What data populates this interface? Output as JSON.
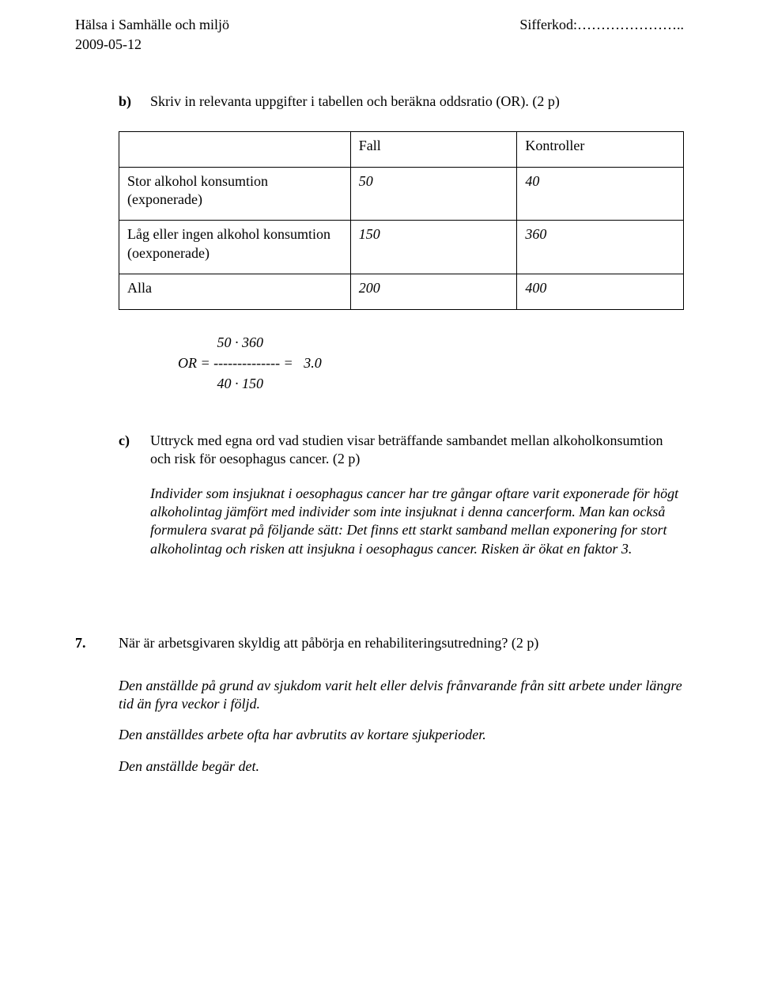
{
  "header": {
    "left": "Hälsa i Samhälle och miljö",
    "right": "Sifferkod:…………………..",
    "date": "2009-05-12"
  },
  "b": {
    "letter": "b)",
    "prompt": "Skriv in relevanta uppgifter i tabellen och beräkna oddsratio (OR). (2 p)"
  },
  "table": {
    "h_fall": "Fall",
    "h_kontroller": "Kontroller",
    "r1_label": "Stor alkohol konsumtion (exponerade)",
    "r1_fall": "50",
    "r1_kontr": "40",
    "r2_label": "Låg eller ingen alkohol konsumtion (oexponerade)",
    "r2_fall": "150",
    "r2_kontr": "360",
    "r3_label": "Alla",
    "r3_fall": "200",
    "r3_kontr": "400"
  },
  "calc": {
    "line1": "           50 · 360",
    "line2": "OR = -------------- =   3.0",
    "line3": "           40 · 150"
  },
  "c": {
    "letter": "c)",
    "prompt": "Uttryck med egna ord vad studien visar beträffande sambandet mellan alkoholkonsumtion och risk för oesophagus cancer. (2 p)",
    "answer": "Individer som insjuknat i oesophagus cancer har tre gångar oftare varit exponerade för högt alkoholintag jämfört med individer som inte insjuknat i denna cancerform. Man kan också formulera svarat på följande sätt: Det finns ett starkt samband mellan exponering for stort alkoholintag och risken att insjukna i oesophagus cancer. Risken är ökat en faktor 3."
  },
  "q7": {
    "num": "7.",
    "prompt": "När är arbetsgivaren skyldig att påbörja en rehabiliteringsutredning? (2 p)",
    "a1": "Den anställde på grund av sjukdom varit helt eller delvis frånvarande från sitt arbete under längre tid än fyra veckor i följd.",
    "a2": "Den anställdes arbete ofta har avbrutits av kortare sjukperioder.",
    "a3": "Den anställde begär det."
  }
}
